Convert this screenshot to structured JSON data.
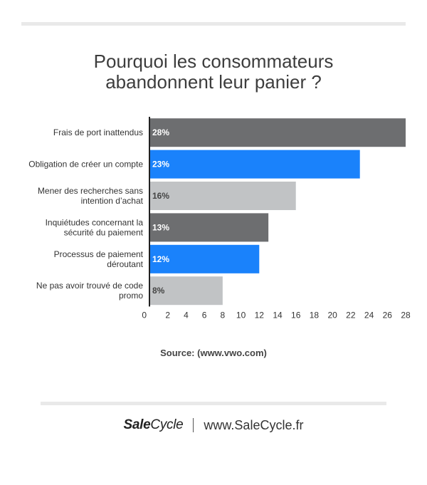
{
  "title_lines": [
    "Pourquoi les consommateurs",
    "abandonnent leur panier ?"
  ],
  "source": "Source: (www.vwo.com)",
  "footer": {
    "brand_bold": "Sale",
    "brand_light": "Cycle",
    "site": "www.SaleCycle.fr"
  },
  "chart_data": {
    "type": "bar",
    "orientation": "horizontal",
    "title": "Pourquoi les consommateurs abandonnent leur panier ?",
    "categories": [
      [
        "Frais de port inattendus"
      ],
      [
        "Obligation de créer un compte"
      ],
      [
        "Mener des recherches sans",
        "intention d’achat"
      ],
      [
        "Inquiétudes concernant la",
        "sécurité du paiement"
      ],
      [
        "Processus de paiement",
        "déroutant"
      ],
      [
        "Ne pas avoir trouvé de code",
        "promo"
      ]
    ],
    "values": [
      28,
      23,
      16,
      13,
      12,
      8
    ],
    "value_labels": [
      "28%",
      "23%",
      "16%",
      "13%",
      "12%",
      "8%"
    ],
    "colors": [
      "#6d6e70",
      "#1a82fb",
      "#c1c3c5",
      "#6d6e70",
      "#1a82fb",
      "#c1c3c5"
    ],
    "label_colors": [
      "#ffffff",
      "#ffffff",
      "#444444",
      "#ffffff",
      "#ffffff",
      "#444444"
    ],
    "xlim": [
      0,
      28
    ],
    "xticks": [
      0,
      2,
      4,
      6,
      8,
      10,
      12,
      14,
      16,
      18,
      20,
      22,
      24,
      26,
      28
    ],
    "grid": false,
    "legend": "none"
  }
}
